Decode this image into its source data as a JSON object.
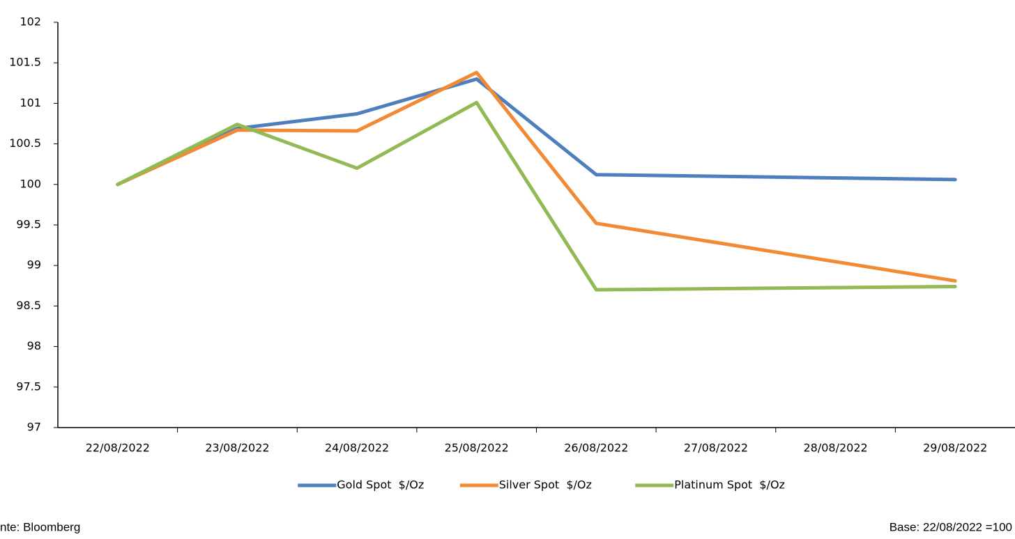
{
  "chart_data": {
    "type": "line",
    "categories": [
      "22/08/2022",
      "23/08/2022",
      "24/08/2022",
      "25/08/2022",
      "26/08/2022",
      "27/08/2022",
      "28/08/2022",
      "29/08/2022"
    ],
    "series": [
      {
        "name": "Gold Spot  $/Oz",
        "color": "#4e7ebd",
        "values": [
          100,
          100.69,
          100.87,
          101.3,
          100.12,
          null,
          null,
          100.06
        ]
      },
      {
        "name": "Silver Spot  $/Oz",
        "color": "#f08a35",
        "values": [
          100,
          100.67,
          100.66,
          101.38,
          99.52,
          null,
          null,
          98.81
        ]
      },
      {
        "name": "Platinum Spot  $/Oz",
        "color": "#93b955",
        "values": [
          100,
          100.74,
          100.2,
          101.01,
          98.7,
          null,
          null,
          98.74
        ]
      }
    ],
    "ylim": [
      97,
      102
    ],
    "yticks": [
      97,
      97.5,
      98,
      98.5,
      99,
      99.5,
      100,
      100.5,
      101,
      101.5,
      102
    ],
    "span_gaps": true,
    "legend": "bottom",
    "source": "nte: Bloomberg",
    "note": "Base: 22/08/2022 =100"
  }
}
